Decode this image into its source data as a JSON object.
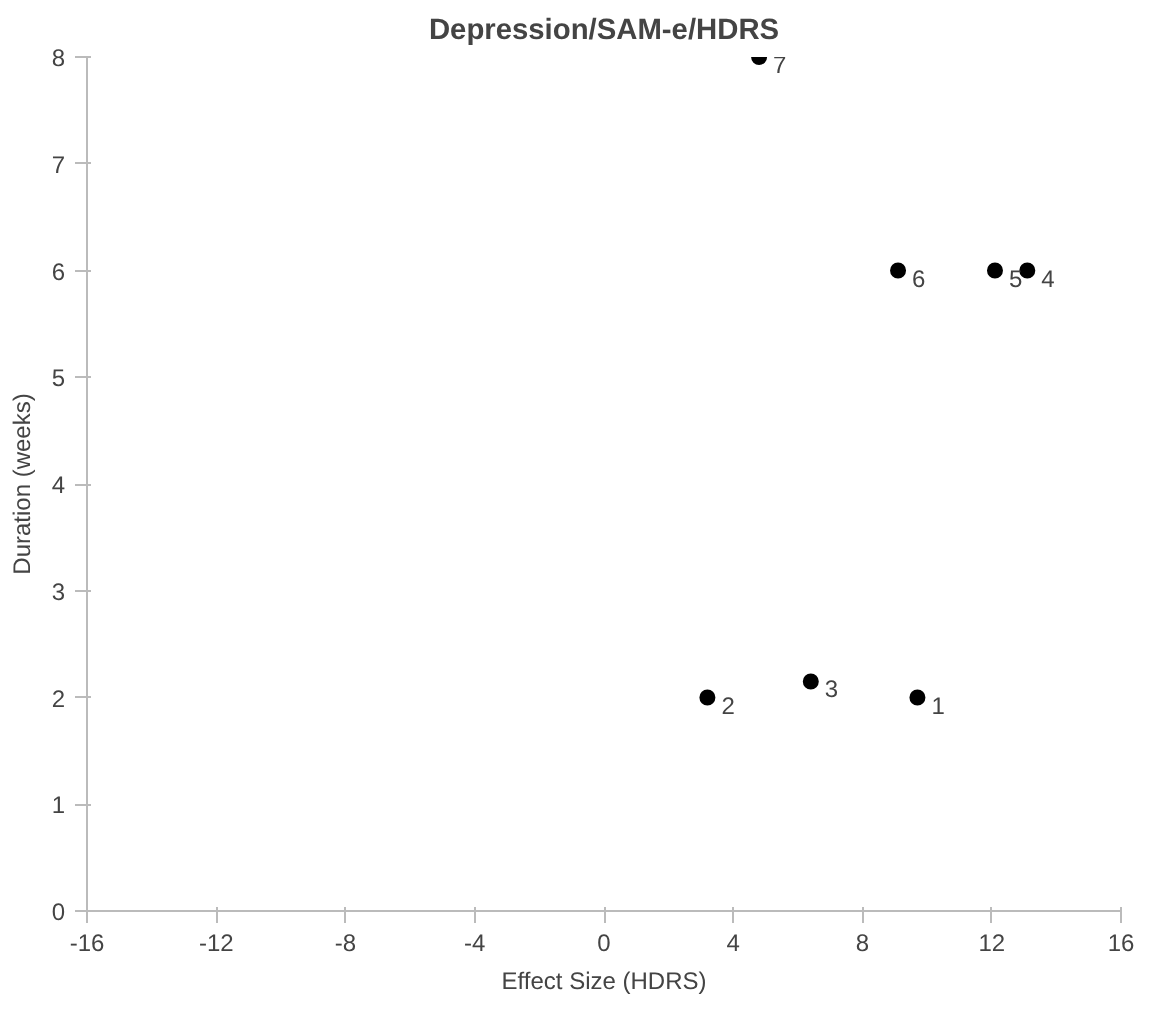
{
  "chart_data": {
    "type": "scatter",
    "title": "Depression/SAM-e/HDRS",
    "xlabel": "Effect Size (HDRS)",
    "ylabel": "Duration (weeks)",
    "x": [
      9.7,
      3.2,
      6.4,
      13.1,
      12.1,
      9.1,
      4.8
    ],
    "series": [
      {
        "color": "#000000",
        "values": [
          2,
          2,
          2.15,
          6,
          6,
          6,
          8
        ]
      }
    ],
    "xlim": [
      -16,
      16
    ],
    "xticks": [
      -16,
      -12,
      -8,
      -4,
      0,
      4,
      8,
      12,
      16
    ],
    "ylim": [
      0,
      8
    ],
    "yticks": [
      0,
      1,
      2,
      3,
      4,
      5,
      6,
      7,
      8
    ],
    "grid": false,
    "marker": "circle",
    "annotations": [
      {
        "text": "1",
        "x": 9.7,
        "y": 2
      },
      {
        "text": "2",
        "x": 3.2,
        "y": 2
      },
      {
        "text": "3",
        "x": 6.4,
        "y": 2.15
      },
      {
        "text": "4",
        "x": 13.1,
        "y": 6
      },
      {
        "text": "5",
        "x": 12.1,
        "y": 6
      },
      {
        "text": "6",
        "x": 9.1,
        "y": 6
      },
      {
        "text": "7",
        "x": 4.8,
        "y": 8
      }
    ]
  }
}
